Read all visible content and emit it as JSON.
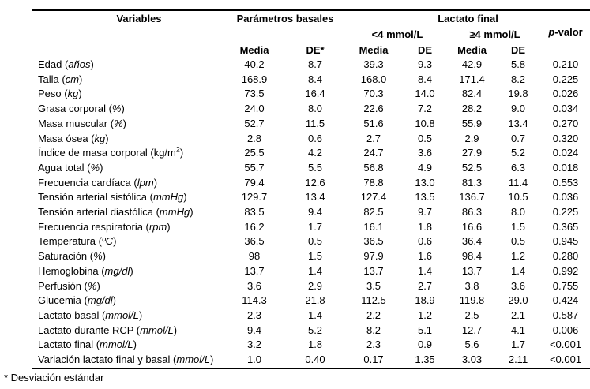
{
  "table": {
    "header": {
      "variables": "Variables",
      "group_basales": "Parámetros basales",
      "group_lactato": "Lactato final",
      "lt4": "<4 mmol/L",
      "gte4": "≥4 mmol/L",
      "p_italic": "p",
      "p_rest": "-valor",
      "sub": [
        "Media",
        "DE*",
        "Media",
        "DE",
        "Media",
        "DE"
      ]
    },
    "rows": [
      {
        "label": "Edad",
        "unit": "años",
        "italic": true,
        "values": [
          "40.2",
          "8.7",
          "39.3",
          "9.3",
          "42.9",
          "5.8",
          "0.210"
        ]
      },
      {
        "label": "Talla",
        "unit": "cm",
        "italic": true,
        "values": [
          "168.9",
          "8.4",
          "168.0",
          "8.4",
          "171.4",
          "8.2",
          "0.225"
        ]
      },
      {
        "label": "Peso",
        "unit": "kg",
        "italic": true,
        "values": [
          "73.5",
          "16.4",
          "70.3",
          "14.0",
          "82.4",
          "19.8",
          "0.026"
        ]
      },
      {
        "label": "Grasa corporal",
        "unit": "%",
        "italic": true,
        "values": [
          "24.0",
          "8.0",
          "22.6",
          "7.2",
          "28.2",
          "9.0",
          "0.034"
        ]
      },
      {
        "label": "Masa muscular",
        "unit": "%",
        "italic": true,
        "values": [
          "52.7",
          "11.5",
          "51.6",
          "10.8",
          "55.9",
          "13.4",
          "0.270"
        ]
      },
      {
        "label": "Masa ósea",
        "unit": "kg",
        "italic": true,
        "values": [
          "2.8",
          "0.6",
          "2.7",
          "0.5",
          "2.9",
          "0.7",
          "0.320"
        ]
      },
      {
        "label": "Índice de masa corporal",
        "unit": "kg/m",
        "sup": "2",
        "italic": false,
        "values": [
          "25.5",
          "4.2",
          "24.7",
          "3.6",
          "27.9",
          "5.2",
          "0.024"
        ]
      },
      {
        "label": "Agua total",
        "unit": "%",
        "italic": true,
        "values": [
          "55.7",
          "5.5",
          "56.8",
          "4.9",
          "52.5",
          "6.3",
          "0.018"
        ]
      },
      {
        "label": "Frecuencia cardíaca",
        "unit": "lpm",
        "italic": true,
        "values": [
          "79.4",
          "12.6",
          "78.8",
          "13.0",
          "81.3",
          "11.4",
          "0.553"
        ]
      },
      {
        "label": "Tensión arterial sistólica",
        "unit": "mmHg",
        "italic": true,
        "values": [
          "129.7",
          "13.4",
          "127.4",
          "13.5",
          "136.7",
          "10.5",
          "0.036"
        ]
      },
      {
        "label": "Tensión arterial diastólica",
        "unit": "mmHg",
        "italic": true,
        "values": [
          "83.5",
          "9.4",
          "82.5",
          "9.7",
          "86.3",
          "8.0",
          "0.225"
        ]
      },
      {
        "label": "Frecuencia respiratoria",
        "unit": "rpm",
        "italic": true,
        "values": [
          "16.2",
          "1.7",
          "16.1",
          "1.8",
          "16.6",
          "1.5",
          "0.365"
        ]
      },
      {
        "label": "Temperatura",
        "unit": "ºC",
        "italic": true,
        "values": [
          "36.5",
          "0.5",
          "36.5",
          "0.6",
          "36.4",
          "0.5",
          "0.945"
        ]
      },
      {
        "label": "Saturación",
        "unit": "%",
        "italic": true,
        "values": [
          "98",
          "1.5",
          "97.9",
          "1.6",
          "98.4",
          "1.2",
          "0.280"
        ]
      },
      {
        "label": "Hemoglobina",
        "unit": "mg/dl",
        "italic": true,
        "values": [
          "13.7",
          "1.4",
          "13.7",
          "1.4",
          "13.7",
          "1.4",
          "0.992"
        ]
      },
      {
        "label": "Perfusión",
        "unit": "%",
        "italic": true,
        "values": [
          "3.6",
          "2.9",
          "3.5",
          "2.7",
          "3.8",
          "3.6",
          "0.755"
        ]
      },
      {
        "label": "Glucemia",
        "unit": "mg/dl",
        "italic": true,
        "values": [
          "114.3",
          "21.8",
          "112.5",
          "18.9",
          "119.8",
          "29.0",
          "0.424"
        ]
      },
      {
        "label": "Lactato basal",
        "unit": "mmol/L",
        "italic": true,
        "values": [
          "2.3",
          "1.4",
          "2.2",
          "1.2",
          "2.5",
          "2.1",
          "0.587"
        ]
      },
      {
        "label": "Lactato durante RCP",
        "unit": "mmol/L",
        "italic": true,
        "values": [
          "9.4",
          "5.2",
          "8.2",
          "5.1",
          "12.7",
          "4.1",
          "0.006"
        ]
      },
      {
        "label": "Lactato final",
        "unit": "mmol/L",
        "italic": true,
        "values": [
          "3.2",
          "1.8",
          "2.3",
          "0.9",
          "5.6",
          "1.7",
          "<0.001"
        ]
      },
      {
        "label": "Variación lactato final y basal",
        "unit": "mmol/L",
        "italic": true,
        "values": [
          "1.0",
          "0.40",
          "0.17",
          "1.35",
          "3.03",
          "2.11",
          "<0.001"
        ]
      }
    ]
  },
  "footnote": "* Desviación estándar"
}
